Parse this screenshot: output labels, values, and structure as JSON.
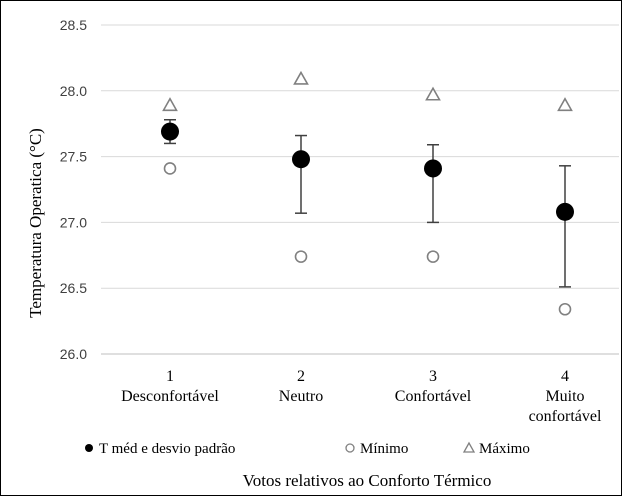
{
  "chart_data": {
    "type": "scatter",
    "title": "",
    "xlabel": "Votos relativos ao Conforto Térmico",
    "ylabel": "Temperatura Operatica (°C)",
    "ylim": [
      26.0,
      28.5
    ],
    "yticks": [
      "26.0",
      "26.5",
      "27.0",
      "27.5",
      "28.0",
      "28.5"
    ],
    "categories": [
      {
        "num": "1",
        "name": [
          "Desconfortável"
        ]
      },
      {
        "num": "2",
        "name": [
          "Neutro"
        ]
      },
      {
        "num": "3",
        "name": [
          "Confortável"
        ]
      },
      {
        "num": "4",
        "name": [
          "Muito",
          "confortável"
        ]
      }
    ],
    "grid": "horizontal",
    "legend_position": "bottom",
    "series": [
      {
        "name": "T méd e desvio padrão",
        "marker": "filled-circle",
        "color": "#000000",
        "values": [
          27.69,
          27.48,
          27.41,
          27.08
        ],
        "error_low": [
          27.6,
          27.07,
          27.0,
          26.51
        ],
        "error_high": [
          27.78,
          27.66,
          27.59,
          27.43
        ]
      },
      {
        "name": "Mínimo",
        "marker": "open-circle",
        "color": "#808080",
        "values": [
          27.41,
          26.74,
          26.74,
          26.34
        ]
      },
      {
        "name": "Máximo",
        "marker": "open-triangle",
        "color": "#808080",
        "values": [
          27.89,
          28.09,
          27.97,
          27.89
        ]
      }
    ]
  }
}
